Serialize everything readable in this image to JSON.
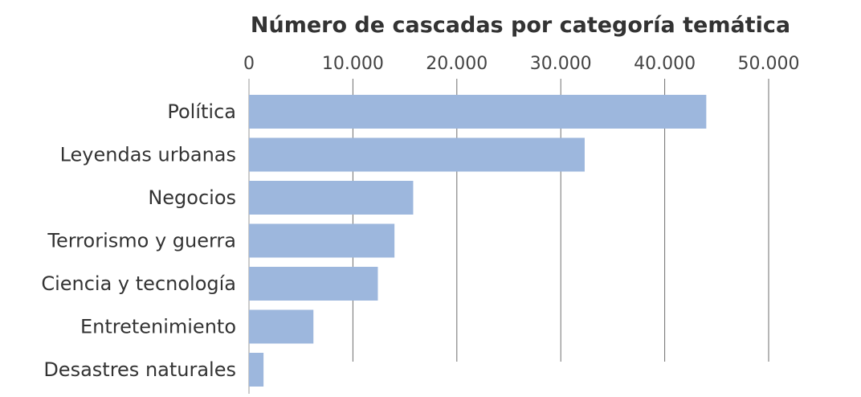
{
  "chart_data": {
    "type": "bar",
    "orientation": "horizontal",
    "title": "Número de cascadas por categoría temática",
    "xlabel": "",
    "ylabel": "",
    "xlim": [
      0,
      50000
    ],
    "x_ticks": [
      0,
      10000,
      20000,
      30000,
      40000,
      50000
    ],
    "x_tick_labels": [
      "0",
      "10.000",
      "20.000",
      "30.000",
      "40.000",
      "50.000"
    ],
    "axis_position": "top",
    "grid": true,
    "legend": "none",
    "categories": [
      "Política",
      "Leyendas urbanas",
      "Negocios",
      "Terrorismo y guerra",
      "Ciencia y tecnología",
      "Entretenimiento",
      "Desastres naturales"
    ],
    "values": [
      44000,
      32300,
      15800,
      14000,
      12400,
      6200,
      1400
    ],
    "colors": {
      "bar": "#9db7dd",
      "grid": "#6e6e6e",
      "text": "#333333",
      "tick_text": "#444444"
    }
  }
}
